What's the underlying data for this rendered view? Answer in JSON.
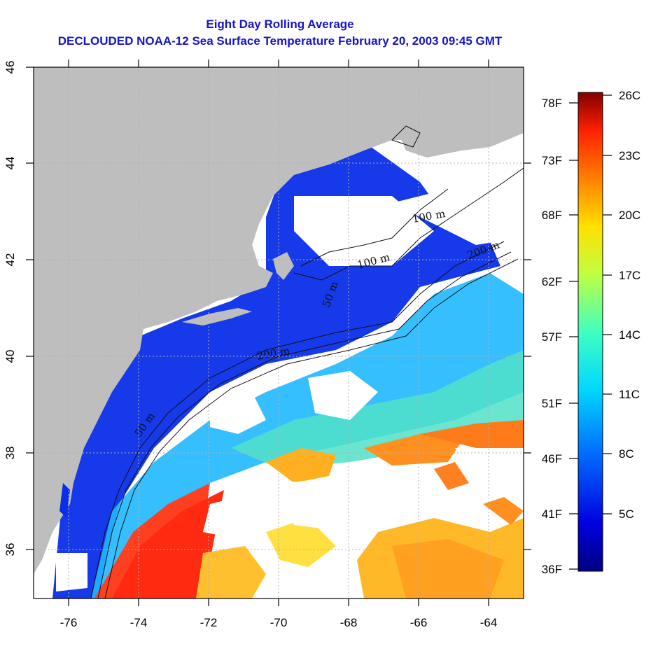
{
  "title": {
    "line1": "Eight Day Rolling Average",
    "line2": "DECLOUDED NOAA-12 Sea Surface Temperature February 20, 2003 09:45 GMT"
  },
  "axes": {
    "lon_ticks": [
      "-76",
      "-74",
      "-72",
      "-70",
      "-68",
      "-66",
      "-64"
    ],
    "lat_ticks": [
      "36",
      "38",
      "40",
      "42",
      "44",
      "46"
    ]
  },
  "contour_labels": [
    "50 m",
    "50 m",
    "100 m",
    "200 m",
    "200 m",
    "100 m"
  ],
  "colorbar": {
    "fahrenheit": [
      "78F",
      "73F",
      "68F",
      "62F",
      "57F",
      "51F",
      "46F",
      "41F",
      "36F"
    ],
    "celsius": [
      "26C",
      "23C",
      "20C",
      "17C",
      "14C",
      "11C",
      "8C",
      "5C"
    ]
  },
  "colors": {
    "land": "#bebebe",
    "title": "#1414c8",
    "cold": "#0a1aff",
    "warm": "#ff3010"
  }
}
